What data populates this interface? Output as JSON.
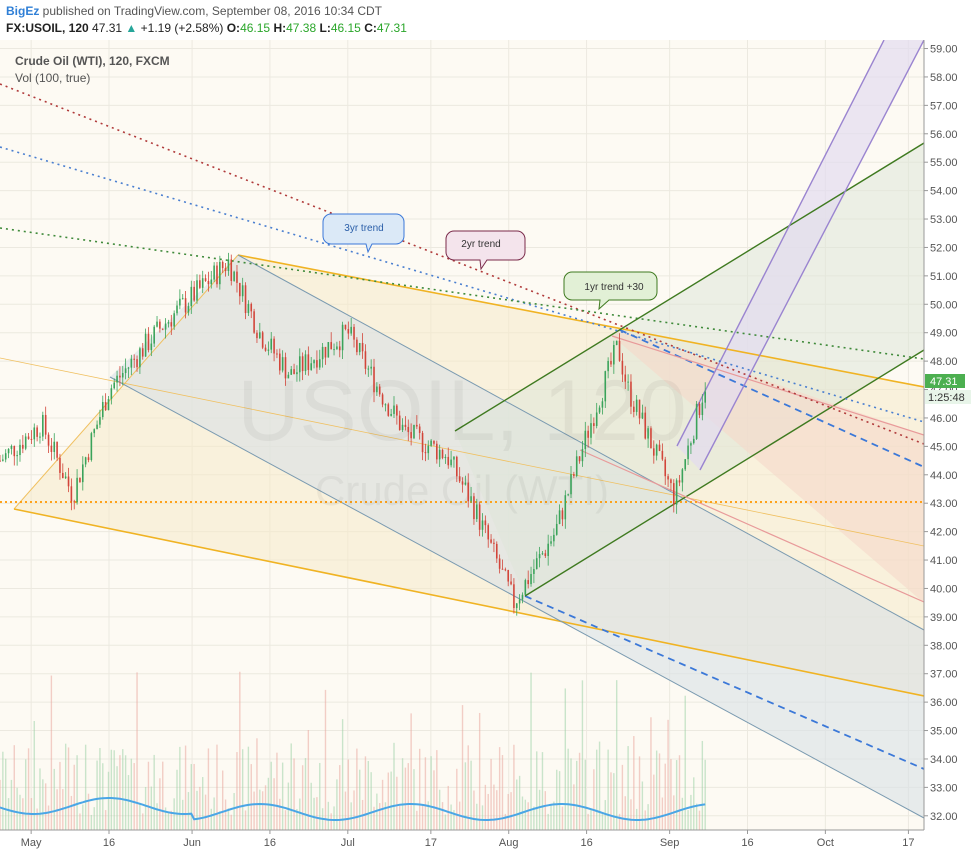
{
  "header": {
    "author": "BigEz",
    "published": " published on TradingView.com, September 08, 2016 10:34 CDT",
    "symbol": "FX:USOIL, 120",
    "last": "47.31",
    "change": "+1.19 (+2.58%)",
    "o_label": "O:",
    "o": "46.15",
    "h_label": "H:",
    "h": "47.38",
    "l_label": "L:",
    "l": "46.15",
    "c_label": "C:",
    "c": "47.31"
  },
  "legend": {
    "title": "Crude Oil (WTI), 120, FXCM",
    "indicator": "Vol (100, true)"
  },
  "watermark": {
    "symbol": "USOIL, 120",
    "name": "Crude Oil (WTI)"
  },
  "price_tag": {
    "value": "47.31",
    "countdown": "1:25:48",
    "color": "#4caf50"
  },
  "annotations": [
    {
      "text": "3yr trend",
      "style": "blue"
    },
    {
      "text": "2yr trend",
      "style": "maroon"
    },
    {
      "text": "1yr trend +30",
      "style": "green"
    }
  ],
  "chart_data": {
    "type": "line",
    "symbol": "FX:USOIL",
    "y_range": [
      31.5,
      59.3
    ],
    "y_ticks": [
      "32.00",
      "33.00",
      "34.00",
      "35.00",
      "36.00",
      "37.00",
      "38.00",
      "39.00",
      "40.00",
      "41.00",
      "42.00",
      "43.00",
      "44.00",
      "45.00",
      "46.00",
      "47.00",
      "48.00",
      "49.00",
      "50.00",
      "51.00",
      "52.00",
      "53.00",
      "54.00",
      "55.00",
      "56.00",
      "57.00",
      "58.00",
      "59.00"
    ],
    "x_ticks": [
      "May",
      "16",
      "Jun",
      "16",
      "Jul",
      "17",
      "Aug",
      "16",
      "Sep",
      "16",
      "Oct",
      "17"
    ],
    "price_path": {
      "dates": [
        "2016-04-25",
        "2016-05-03",
        "2016-05-09",
        "2016-05-16",
        "2016-05-26",
        "2016-06-08",
        "2016-06-14",
        "2016-06-20",
        "2016-06-27",
        "2016-07-01",
        "2016-07-07",
        "2016-07-12",
        "2016-07-20",
        "2016-07-25",
        "2016-08-02",
        "2016-08-10",
        "2016-08-18",
        "2016-08-22",
        "2016-08-24",
        "2016-08-31",
        "2016-09-02",
        "2016-09-08"
      ],
      "close": [
        44.5,
        45.8,
        43.3,
        47.0,
        49.2,
        51.5,
        49.0,
        47.5,
        48.5,
        49.0,
        47.0,
        45.5,
        44.7,
        43.0,
        39.5,
        42.0,
        46.5,
        48.5,
        47.0,
        44.0,
        43.2,
        47.3
      ]
    },
    "horizontal_level": 43.0,
    "volume": {
      "avg_label": "Vol (100, true)",
      "shown": true
    },
    "grid": true
  }
}
